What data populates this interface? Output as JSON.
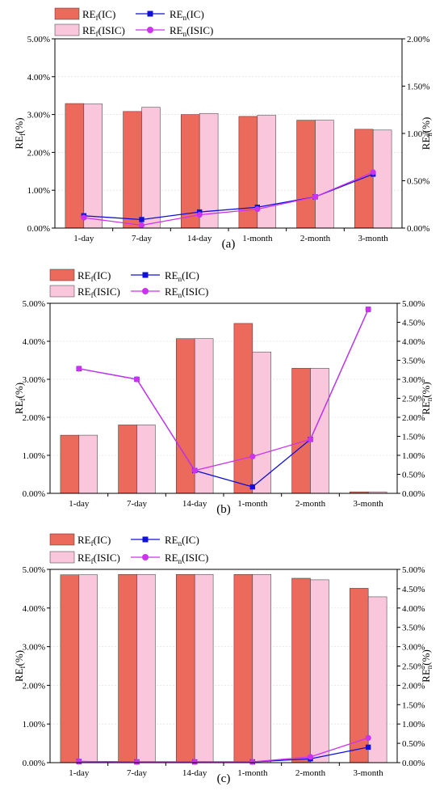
{
  "chart_data": [
    {
      "type": "bar",
      "panel_label": "(a)",
      "categories": [
        "1-day",
        "7-day",
        "14-day",
        "1-month",
        "2-month",
        "3-month"
      ],
      "y_left": {
        "label_base": "RE",
        "label_sub": "f",
        "label_suffix": "(%)",
        "min": 0,
        "max": 5,
        "step": 1,
        "ticks": [
          "0.00%",
          "1.00%",
          "2.00%",
          "3.00%",
          "4.00%",
          "5.00%"
        ]
      },
      "y_right": {
        "label_base": "RE",
        "label_sub": "n",
        "label_suffix": "(%)",
        "min": 0,
        "max": 2,
        "step": 0.5,
        "ticks": [
          "0.00%",
          "0.50%",
          "1.00%",
          "1.50%",
          "2.00%"
        ]
      },
      "bar_series": [
        {
          "legend_base": "RE",
          "legend_sub": "f",
          "legend_suffix": "(IC)",
          "color": "#ec6a5c",
          "values": [
            3.29,
            3.08,
            3.0,
            2.95,
            2.85,
            2.61
          ]
        },
        {
          "legend_base": "RE",
          "legend_sub": "f",
          "legend_suffix": "(ISIC)",
          "color": "#f9c6dc",
          "values": [
            3.28,
            3.19,
            3.03,
            2.98,
            2.85,
            2.59
          ]
        }
      ],
      "line_series": [
        {
          "legend_base": "RE",
          "legend_sub": "n",
          "legend_suffix": "(IC)",
          "color": "#1010d8",
          "marker": "square",
          "values": [
            0.13,
            0.09,
            0.17,
            0.22,
            0.33,
            0.57
          ]
        },
        {
          "legend_base": "RE",
          "legend_sub": "n",
          "legend_suffix": "(ISIC)",
          "color": "#cc33ee",
          "marker": "circle",
          "values": [
            0.11,
            0.03,
            0.14,
            0.2,
            0.33,
            0.59
          ]
        }
      ],
      "legend_position": "top-left, above plot",
      "grid": true
    },
    {
      "type": "bar",
      "panel_label": "(b)",
      "categories": [
        "1-day",
        "7-day",
        "14-day",
        "1-month",
        "2-month",
        "3-month"
      ],
      "y_left": {
        "label_base": "RE",
        "label_sub": "f",
        "label_suffix": "(%)",
        "min": 0,
        "max": 5,
        "step": 1,
        "ticks": [
          "0.00%",
          "1.00%",
          "2.00%",
          "3.00%",
          "4.00%",
          "5.00%"
        ]
      },
      "y_right": {
        "label_base": "RE",
        "label_sub": "n",
        "label_suffix": "(%)",
        "min": 0,
        "max": 5,
        "step": 0.5,
        "ticks": [
          "0.00%",
          "0.50%",
          "1.00%",
          "1.50%",
          "2.00%",
          "2.50%",
          "3.00%",
          "3.50%",
          "4.00%",
          "4.50%",
          "5.00%"
        ]
      },
      "bar_series": [
        {
          "legend_base": "RE",
          "legend_sub": "f",
          "legend_suffix": "(IC)",
          "color": "#ec6a5c",
          "values": [
            1.53,
            1.8,
            4.07,
            4.47,
            3.29,
            0.04
          ]
        },
        {
          "legend_base": "RE",
          "legend_sub": "f",
          "legend_suffix": "(ISIC)",
          "color": "#f9c6dc",
          "values": [
            1.53,
            1.8,
            4.07,
            3.72,
            3.29,
            0.04
          ]
        }
      ],
      "line_series": [
        {
          "legend_base": "RE",
          "legend_sub": "n",
          "legend_suffix": "(IC)",
          "color": "#1010d8",
          "marker": "square",
          "values": [
            3.28,
            3.0,
            0.6,
            0.17,
            1.42,
            4.84
          ]
        },
        {
          "legend_base": "RE",
          "legend_sub": "n",
          "legend_suffix": "(ISIC)",
          "color": "#cc33ee",
          "marker": "circle",
          "values": [
            3.28,
            3.0,
            0.6,
            0.97,
            1.42,
            4.84
          ]
        }
      ],
      "legend_position": "top-left, above plot",
      "grid": true
    },
    {
      "type": "bar",
      "panel_label": "(c)",
      "categories": [
        "1-day",
        "7-day",
        "14-day",
        "1-month",
        "2-month",
        "3-month"
      ],
      "y_left": {
        "label_base": "RE",
        "label_sub": "f",
        "label_suffix": "(%)",
        "min": 0,
        "max": 5,
        "step": 1,
        "ticks": [
          "0.00%",
          "1.00%",
          "2.00%",
          "3.00%",
          "4.00%",
          "5.00%"
        ]
      },
      "y_right": {
        "label_base": "RE",
        "label_sub": "n",
        "label_suffix": "(%)",
        "min": 0,
        "max": 5,
        "step": 0.5,
        "ticks": [
          "0.00%",
          "0.50%",
          "1.00%",
          "1.50%",
          "2.00%",
          "2.50%",
          "3.00%",
          "3.50%",
          "4.00%",
          "4.50%",
          "5.00%"
        ]
      },
      "bar_series": [
        {
          "legend_base": "RE",
          "legend_sub": "f",
          "legend_suffix": "(IC)",
          "color": "#ec6a5c",
          "values": [
            4.86,
            4.87,
            4.87,
            4.87,
            4.77,
            4.51
          ]
        },
        {
          "legend_base": "RE",
          "legend_sub": "f",
          "legend_suffix": "(ISIC)",
          "color": "#f9c6dc",
          "values": [
            4.86,
            4.87,
            4.87,
            4.87,
            4.73,
            4.29
          ]
        }
      ],
      "line_series": [
        {
          "legend_base": "RE",
          "legend_sub": "n",
          "legend_suffix": "(IC)",
          "color": "#1010d8",
          "marker": "square",
          "values": [
            0.03,
            0.02,
            0.02,
            0.02,
            0.1,
            0.4
          ]
        },
        {
          "legend_base": "RE",
          "legend_sub": "n",
          "legend_suffix": "(ISIC)",
          "color": "#cc33ee",
          "marker": "circle",
          "values": [
            0.03,
            0.02,
            0.02,
            0.02,
            0.15,
            0.64
          ]
        }
      ],
      "legend_position": "top-left, above plot",
      "grid": true
    }
  ]
}
